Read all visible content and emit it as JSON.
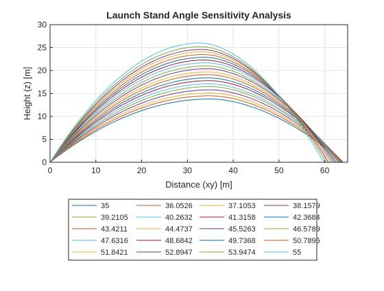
{
  "chart_data": {
    "type": "line",
    "title": "Launch Stand Angle Sensitivity Analysis",
    "xlabel": "Distance (xy) [m]",
    "ylabel": "Height (z) [m]",
    "xlim": [
      0,
      65
    ],
    "ylim": [
      0,
      30
    ],
    "xticks": [
      "0",
      "10",
      "20",
      "30",
      "40",
      "50",
      "60"
    ],
    "yticks": [
      "0",
      "5",
      "10",
      "15",
      "20",
      "25",
      "30"
    ],
    "grid": true,
    "legend_position": "below plot, 4 columns",
    "series": [
      {
        "name": "35",
        "color": "#0072BD",
        "peak_x": 35.0,
        "peak_y": 13.8,
        "range": 64.0
      },
      {
        "name": "36.0526",
        "color": "#D95319",
        "peak_x": 35.0,
        "peak_y": 14.5,
        "range": 64.0
      },
      {
        "name": "37.1053",
        "color": "#EDB120",
        "peak_x": 35.0,
        "peak_y": 15.1,
        "range": 64.0
      },
      {
        "name": "38.1579",
        "color": "#7E2F8E",
        "peak_x": 35.0,
        "peak_y": 15.8,
        "range": 64.0
      },
      {
        "name": "39.2105",
        "color": "#77AC30",
        "peak_x": 35.0,
        "peak_y": 16.5,
        "range": 64.0
      },
      {
        "name": "40.2632",
        "color": "#4DBEEE",
        "peak_x": 34.8,
        "peak_y": 17.1,
        "range": 63.9
      },
      {
        "name": "41.3158",
        "color": "#A2142F",
        "peak_x": 34.8,
        "peak_y": 17.8,
        "range": 63.9
      },
      {
        "name": "42.3684",
        "color": "#0072BD",
        "peak_x": 34.7,
        "peak_y": 18.4,
        "range": 63.8
      },
      {
        "name": "43.4211",
        "color": "#D95319",
        "peak_x": 34.6,
        "peak_y": 19.1,
        "range": 63.6
      },
      {
        "name": "44.4737",
        "color": "#EDB120",
        "peak_x": 34.5,
        "peak_y": 19.7,
        "range": 63.4
      },
      {
        "name": "45.5263",
        "color": "#7E2F8E",
        "peak_x": 34.4,
        "peak_y": 20.4,
        "range": 63.2
      },
      {
        "name": "46.5789",
        "color": "#77AC30",
        "peak_x": 34.2,
        "peak_y": 21.0,
        "range": 63.0
      },
      {
        "name": "47.6316",
        "color": "#4DBEEE",
        "peak_x": 34.1,
        "peak_y": 21.7,
        "range": 62.7
      },
      {
        "name": "48.6842",
        "color": "#A2142F",
        "peak_x": 33.9,
        "peak_y": 22.3,
        "range": 62.4
      },
      {
        "name": "49.7368",
        "color": "#0072BD",
        "peak_x": 33.8,
        "peak_y": 22.9,
        "range": 62.0
      },
      {
        "name": "50.7895",
        "color": "#D95319",
        "peak_x": 33.6,
        "peak_y": 23.5,
        "range": 61.6
      },
      {
        "name": "51.8421",
        "color": "#EDB120",
        "peak_x": 33.4,
        "peak_y": 24.1,
        "range": 61.2
      },
      {
        "name": "52.8947",
        "color": "#7E2F8E",
        "peak_x": 33.2,
        "peak_y": 24.6,
        "range": 60.8
      },
      {
        "name": "53.9474",
        "color": "#77AC30",
        "peak_x": 33.0,
        "peak_y": 25.2,
        "range": 60.3
      },
      {
        "name": "55",
        "color": "#4DBEEE",
        "peak_x": 32.8,
        "peak_y": 26.0,
        "range": 59.8
      }
    ]
  }
}
